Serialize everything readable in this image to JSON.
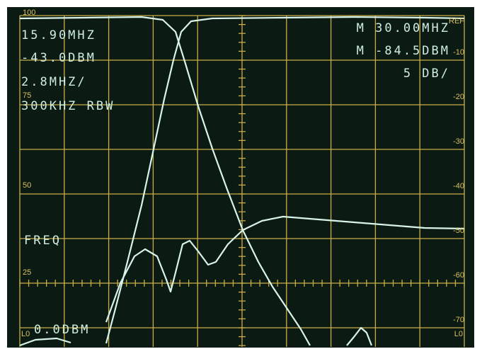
{
  "readout": {
    "left": [
      "15.90MHZ",
      "-43.0DBM",
      "2.8MHZ/",
      "300KHZ RBW"
    ],
    "right": [
      "M 30.00MHZ",
      "M -84.5DBM",
      "5 DB/"
    ]
  },
  "soft_labels": {
    "freq": "FREQ",
    "ref_level": "0.0DBM"
  },
  "scale": {
    "left": [
      "100",
      "75",
      "50",
      "25"
    ],
    "right": [
      "REF",
      "-10",
      "-20",
      "-30",
      "-40",
      "-50",
      "-60",
      "-70"
    ]
  },
  "corner_labels": [
    "L0",
    "L0"
  ]
}
